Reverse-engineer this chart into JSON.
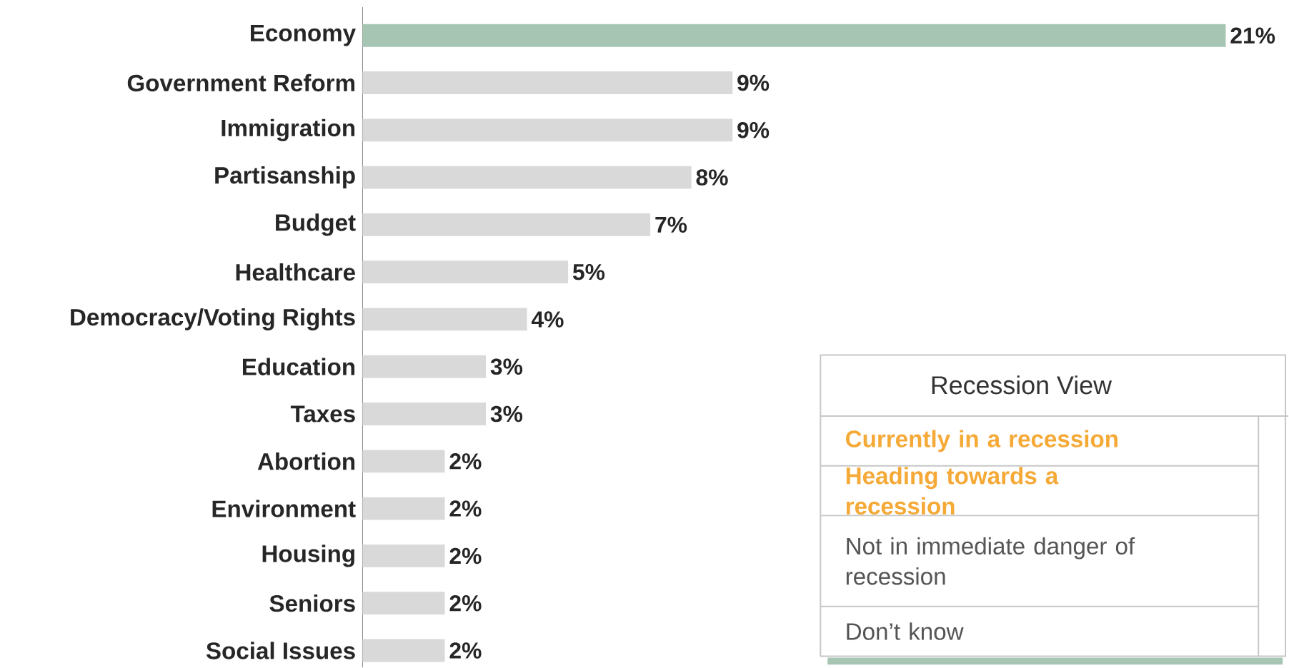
{
  "chart_data": [
    {
      "type": "bar",
      "orientation": "horizontal",
      "tick_labels": "y",
      "categories": [
        "Economy",
        "Government Reform",
        "Immigration",
        "Partisanship",
        "Budget",
        "Healthcare",
        "Democracy/Voting Rights",
        "Education",
        "Taxes",
        "Abortion",
        "Environment",
        "Housing",
        "Seniors",
        "Social Issues"
      ],
      "values": [
        21,
        9,
        9,
        8,
        7,
        5,
        4,
        3,
        3,
        2,
        2,
        2,
        2,
        2
      ],
      "value_labels": [
        "21%",
        "9%",
        "9%",
        "8%",
        "7%",
        "5%",
        "4%",
        "3%",
        "3%",
        "2%",
        "2%",
        "2%",
        "2%",
        "2%"
      ],
      "colors": [
        "#a6c6b3",
        "#d9d9d9",
        "#d9d9d9",
        "#d9d9d9",
        "#d9d9d9",
        "#d9d9d9",
        "#d9d9d9",
        "#d9d9d9",
        "#d9d9d9",
        "#d9d9d9",
        "#d9d9d9",
        "#d9d9d9",
        "#d9d9d9",
        "#d9d9d9"
      ]
    },
    {
      "type": "other",
      "title": "Recession View",
      "annotations": [
        "Currently in a recession",
        "Heading towards a recession",
        "Not in immediate danger of recession",
        "Don’t know"
      ],
      "colors": [
        "#f5a936",
        "#f5a936",
        "#555555",
        "#555555"
      ]
    }
  ]
}
